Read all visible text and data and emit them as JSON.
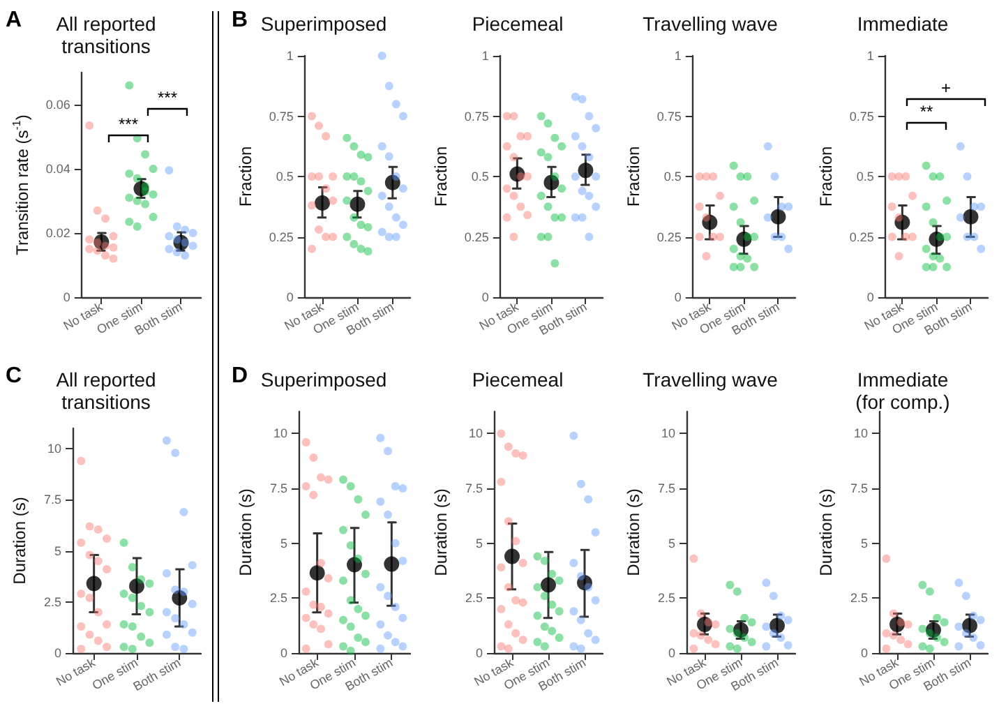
{
  "chart_data": [
    {
      "type": "scatter",
      "title": "All reported\ntransitions",
      "ylabel": "Transition rate (s$^{-1}$)",
      "categories": [
        "No task",
        "One stim",
        "Both stim"
      ],
      "ylim": [
        0,
        0.07
      ],
      "yticks": [
        0,
        0.02,
        0.04,
        0.06
      ],
      "marker": "circle",
      "annotations": [
        "A",
        "***",
        "***"
      ],
      "series": [
        {
          "color": "#f8766d",
          "x": [
            "No task",
            "No task",
            "No task",
            "No task",
            "No task",
            "No task",
            "No task",
            "No task",
            "No task",
            "No task",
            "No task",
            "No task"
          ],
          "values": [
            0.0535,
            0.027,
            0.0245,
            0.019,
            0.018,
            0.017,
            0.016,
            0.0155,
            0.015,
            0.0145,
            0.013,
            0.012
          ]
        },
        {
          "color": "#00ba38",
          "x": [
            "One stim",
            "One stim",
            "One stim",
            "One stim",
            "One stim",
            "One stim",
            "One stim",
            "One stim",
            "One stim",
            "One stim",
            "One stim",
            "One stim",
            "One stim",
            "One stim",
            "One stim"
          ],
          "values": [
            0.066,
            0.0495,
            0.0445,
            0.04,
            0.0385,
            0.037,
            0.0345,
            0.032,
            0.031,
            0.03,
            0.029,
            0.025,
            0.0235,
            0.022,
            0.033
          ]
        },
        {
          "color": "#619cff",
          "x": [
            "Both stim",
            "Both stim",
            "Both stim",
            "Both stim",
            "Both stim",
            "Both stim",
            "Both stim",
            "Both stim",
            "Both stim",
            "Both stim",
            "Both stim"
          ],
          "values": [
            0.0395,
            0.022,
            0.021,
            0.02,
            0.019,
            0.018,
            0.017,
            0.016,
            0.015,
            0.014,
            0.013
          ]
        },
        {
          "color": "#000000",
          "values": [
            0.0172,
            0.0338,
            0.017
          ],
          "errors": [
            [
              0.0145,
              0.02
            ],
            [
              0.031,
              0.0368
            ],
            [
              0.0145,
              0.0202
            ]
          ]
        }
      ]
    },
    {
      "type": "scatter",
      "title": "Superimposed",
      "ylabel": "Fraction",
      "categories": [
        "No task",
        "One stim",
        "Both stim"
      ],
      "ylim": [
        0,
        1
      ],
      "yticks": [
        0,
        0.25,
        0.5,
        0.75,
        1
      ],
      "marker": "circle",
      "annotations": [
        "B"
      ],
      "series": [
        {
          "color": "#f8766d",
          "x": [
            "No task",
            "No task",
            "No task",
            "No task",
            "No task",
            "No task",
            "No task",
            "No task",
            "No task",
            "No task",
            "No task",
            "No task",
            "No task"
          ],
          "values": [
            0.75,
            0.71,
            0.667,
            0.5,
            0.5,
            0.5,
            0.45,
            0.4,
            0.38,
            0.28,
            0.25,
            0.25,
            0.2
          ]
        },
        {
          "color": "#00ba38",
          "x": [
            "One stim",
            "One stim",
            "One stim",
            "One stim",
            "One stim",
            "One stim",
            "One stim",
            "One stim",
            "One stim",
            "One stim",
            "One stim",
            "One stim",
            "One stim",
            "One stim",
            "One stim",
            "One stim"
          ],
          "values": [
            0.66,
            0.625,
            0.59,
            0.58,
            0.5,
            0.5,
            0.48,
            0.44,
            0.4,
            0.33,
            0.3,
            0.29,
            0.25,
            0.22,
            0.2,
            0.19
          ]
        },
        {
          "color": "#619cff",
          "x": [
            "Both stim",
            "Both stim",
            "Both stim",
            "Both stim",
            "Both stim",
            "Both stim",
            "Both stim",
            "Both stim",
            "Both stim",
            "Both stim",
            "Both stim",
            "Both stim",
            "Both stim",
            "Both stim",
            "Both stim"
          ],
          "values": [
            1,
            0.875,
            0.8,
            0.75,
            0.625,
            0.583,
            0.5,
            0.45,
            0.42,
            0.375,
            0.33,
            0.3,
            0.27,
            0.25,
            0.25
          ]
        },
        {
          "color": "#000000",
          "values": [
            0.39,
            0.385,
            0.475
          ],
          "errors": [
            [
              0.33,
              0.455
            ],
            [
              0.33,
              0.44
            ],
            [
              0.41,
              0.54
            ]
          ]
        }
      ]
    },
    {
      "type": "scatter",
      "title": "Piecemeal",
      "ylabel": "Fraction",
      "categories": [
        "No task",
        "One stim",
        "Both stim"
      ],
      "ylim": [
        0,
        1
      ],
      "yticks": [
        0,
        0.25,
        0.5,
        0.75,
        1
      ],
      "marker": "circle",
      "series": [
        {
          "color": "#f8766d",
          "x": [
            "No task",
            "No task",
            "No task",
            "No task",
            "No task",
            "No task",
            "No task",
            "No task",
            "No task",
            "No task",
            "No task",
            "No task",
            "No task",
            "No task"
          ],
          "values": [
            0.75,
            0.75,
            0.667,
            0.667,
            0.625,
            0.58,
            0.5,
            0.5,
            0.45,
            0.42,
            0.375,
            0.34,
            0.33,
            0.25
          ]
        },
        {
          "color": "#00ba38",
          "x": [
            "One stim",
            "One stim",
            "One stim",
            "One stim",
            "One stim",
            "One stim",
            "One stim",
            "One stim",
            "One stim",
            "One stim",
            "One stim",
            "One stim",
            "One stim",
            "One stim",
            "One stim"
          ],
          "values": [
            0.75,
            0.72,
            0.66,
            0.625,
            0.6,
            0.58,
            0.5,
            0.45,
            0.42,
            0.375,
            0.33,
            0.33,
            0.25,
            0.25,
            0.14
          ]
        },
        {
          "color": "#619cff",
          "x": [
            "Both stim",
            "Both stim",
            "Both stim",
            "Both stim",
            "Both stim",
            "Both stim",
            "Both stim",
            "Both stim",
            "Both stim",
            "Both stim",
            "Both stim",
            "Both stim",
            "Both stim",
            "Both stim",
            "Both stim"
          ],
          "values": [
            0.83,
            0.82,
            0.75,
            0.7,
            0.667,
            0.625,
            0.58,
            0.5,
            0.5,
            0.44,
            0.42,
            0.375,
            0.33,
            0.33,
            0.25
          ]
        },
        {
          "color": "#000000",
          "values": [
            0.51,
            0.475,
            0.525
          ],
          "errors": [
            [
              0.45,
              0.575
            ],
            [
              0.415,
              0.54
            ],
            [
              0.465,
              0.59
            ]
          ]
        }
      ]
    },
    {
      "type": "scatter",
      "title": "Travelling wave",
      "ylabel": "Fraction",
      "categories": [
        "No task",
        "One stim",
        "Both stim"
      ],
      "ylim": [
        0,
        1
      ],
      "yticks": [
        0,
        0.25,
        0.5,
        0.75,
        1
      ],
      "marker": "circle",
      "series": [
        {
          "color": "#f8766d",
          "x": [
            "No task",
            "No task",
            "No task",
            "No task",
            "No task",
            "No task",
            "No task",
            "No task",
            "No task",
            "No task"
          ],
          "values": [
            0.5,
            0.5,
            0.5,
            0.42,
            0.375,
            0.33,
            0.25,
            0.25,
            0.25,
            0.17
          ]
        },
        {
          "color": "#00ba38",
          "x": [
            "One stim",
            "One stim",
            "One stim",
            "One stim",
            "One stim",
            "One stim",
            "One stim",
            "One stim",
            "One stim",
            "One stim",
            "One stim",
            "One stim",
            "One stim",
            "One stim"
          ],
          "values": [
            0.545,
            0.5,
            0.5,
            0.4,
            0.375,
            0.31,
            0.25,
            0.25,
            0.2,
            0.17,
            0.16,
            0.125,
            0.125,
            0.125
          ]
        },
        {
          "color": "#619cff",
          "x": [
            "Both stim",
            "Both stim",
            "Both stim",
            "Both stim",
            "Both stim",
            "Both stim",
            "Both stim",
            "Both stim"
          ],
          "values": [
            0.625,
            0.5,
            0.375,
            0.375,
            0.33,
            0.25,
            0.25,
            0.2
          ]
        },
        {
          "color": "#000000",
          "values": [
            0.31,
            0.24,
            0.333
          ],
          "errors": [
            [
              0.24,
              0.38
            ],
            [
              0.18,
              0.295
            ],
            [
              0.25,
              0.415
            ]
          ]
        }
      ]
    },
    {
      "type": "scatter",
      "title": "Immediate",
      "ylabel": "Fraction",
      "categories": [
        "No task",
        "One stim",
        "Both stim"
      ],
      "ylim": [
        0,
        1
      ],
      "yticks": [
        0,
        0.25,
        0.5,
        0.75,
        1
      ],
      "marker": "circle",
      "annotations": [
        "**",
        "+"
      ],
      "series": [
        {
          "color": "#f8766d",
          "x": [
            "No task",
            "No task",
            "No task",
            "No task",
            "No task",
            "No task",
            "No task",
            "No task",
            "No task",
            "No task"
          ],
          "values": [
            0.5,
            0.5,
            0.5,
            0.42,
            0.375,
            0.33,
            0.25,
            0.25,
            0.25,
            0.17
          ]
        },
        {
          "color": "#00ba38",
          "x": [
            "One stim",
            "One stim",
            "One stim",
            "One stim",
            "One stim",
            "One stim",
            "One stim",
            "One stim",
            "One stim",
            "One stim",
            "One stim",
            "One stim",
            "One stim",
            "One stim"
          ],
          "values": [
            0.545,
            0.5,
            0.5,
            0.4,
            0.375,
            0.31,
            0.25,
            0.25,
            0.2,
            0.17,
            0.16,
            0.125,
            0.125,
            0.125
          ]
        },
        {
          "color": "#619cff",
          "x": [
            "Both stim",
            "Both stim",
            "Both stim",
            "Both stim",
            "Both stim",
            "Both stim",
            "Both stim",
            "Both stim"
          ],
          "values": [
            0.625,
            0.5,
            0.375,
            0.375,
            0.33,
            0.25,
            0.25,
            0.2
          ]
        },
        {
          "color": "#000000",
          "values": [
            0.31,
            0.24,
            0.333
          ],
          "errors": [
            [
              0.24,
              0.38
            ],
            [
              0.18,
              0.295
            ],
            [
              0.25,
              0.415
            ]
          ]
        }
      ]
    },
    {
      "type": "scatter",
      "title": "All reported\ntransitions",
      "ylabel": "Duration (s)",
      "categories": [
        "No task",
        "One stim",
        "Both stim"
      ],
      "ylim": [
        0,
        11
      ],
      "yticks": [
        0,
        2.5,
        5,
        7.5,
        10
      ],
      "marker": "circle",
      "annotations": [
        "C"
      ],
      "series": [
        {
          "color": "#f8766d",
          "x": [
            "No task",
            "No task",
            "No task",
            "No task",
            "No task",
            "No task",
            "No task",
            "No task",
            "No task",
            "No task",
            "No task",
            "No task",
            "No task",
            "No task",
            "No task",
            "No task",
            "No task"
          ],
          "values": [
            9.4,
            6.2,
            6.05,
            5.6,
            5.4,
            4.8,
            4.5,
            4.1,
            2.9,
            2.7,
            2.0,
            1.4,
            1.3,
            0.9,
            0.6,
            0.3,
            0.2
          ]
        },
        {
          "color": "#00ba38",
          "x": [
            "One stim",
            "One stim",
            "One stim",
            "One stim",
            "One stim",
            "One stim",
            "One stim",
            "One stim",
            "One stim",
            "One stim",
            "One stim",
            "One stim",
            "One stim",
            "One stim"
          ],
          "values": [
            5.4,
            4.2,
            3.6,
            3.4,
            2.9,
            2.7,
            2.3,
            2.0,
            1.4,
            1.3,
            0.8,
            0.5,
            0.3,
            0.2
          ]
        },
        {
          "color": "#619cff",
          "x": [
            "Both stim",
            "Both stim",
            "Both stim",
            "Both stim",
            "Both stim",
            "Both stim",
            "Both stim",
            "Both stim",
            "Both stim",
            "Both stim",
            "Both stim",
            "Both stim",
            "Both stim",
            "Both stim",
            "Both stim"
          ],
          "values": [
            10.4,
            9.8,
            6.9,
            4.3,
            3.9,
            3.1,
            3.0,
            2.4,
            2.0,
            1.7,
            1.4,
            1.0,
            0.9,
            0.3,
            0.2
          ]
        },
        {
          "color": "#000000",
          "values": [
            3.4,
            3.27,
            2.7
          ],
          "errors": [
            [
              2.0,
              4.8
            ],
            [
              1.9,
              4.65
            ],
            [
              1.3,
              4.1
            ]
          ]
        }
      ]
    },
    {
      "type": "scatter",
      "title": "Superimposed",
      "ylabel": "Duration (s)",
      "categories": [
        "No task",
        "One stim",
        "Both stim"
      ],
      "ylim": [
        0,
        11
      ],
      "yticks": [
        0,
        2.5,
        5,
        7.5,
        10
      ],
      "marker": "circle",
      "annotations": [
        "D"
      ],
      "series": [
        {
          "color": "#f8766d",
          "x": [
            "No task",
            "No task",
            "No task",
            "No task",
            "No task",
            "No task",
            "No task",
            "No task",
            "No task",
            "No task",
            "No task",
            "No task",
            "No task",
            "No task",
            "No task",
            "No task",
            "No task"
          ],
          "values": [
            9.6,
            8.9,
            8.0,
            7.9,
            7.6,
            7.2,
            4.1,
            3.4,
            2.8,
            2.2,
            2.1,
            1.8,
            1.6,
            1.3,
            1.1,
            0.4,
            0.2
          ]
        },
        {
          "color": "#00ba38",
          "x": [
            "One stim",
            "One stim",
            "One stim",
            "One stim",
            "One stim",
            "One stim",
            "One stim",
            "One stim",
            "One stim",
            "One stim",
            "One stim",
            "One stim",
            "One stim",
            "One stim",
            "One stim",
            "One stim",
            "One stim",
            "One stim"
          ],
          "values": [
            7.9,
            7.6,
            7.0,
            6.3,
            5.6,
            4.9,
            4.3,
            3.6,
            3.3,
            2.4,
            2.0,
            1.7,
            1.5,
            1.2,
            0.7,
            0.5,
            0.3,
            0.1
          ]
        },
        {
          "color": "#619cff",
          "x": [
            "Both stim",
            "Both stim",
            "Both stim",
            "Both stim",
            "Both stim",
            "Both stim",
            "Both stim",
            "Both stim",
            "Both stim",
            "Both stim",
            "Both stim",
            "Both stim",
            "Both stim",
            "Both stim",
            "Both stim",
            "Both stim",
            "Both stim"
          ],
          "values": [
            9.8,
            9.2,
            7.6,
            7.5,
            6.9,
            6.3,
            5.0,
            4.2,
            3.0,
            2.6,
            2.1,
            1.6,
            1.3,
            0.8,
            0.5,
            0.3,
            0.2
          ]
        },
        {
          "color": "#000000",
          "values": [
            3.65,
            4.02,
            4.05
          ],
          "errors": [
            [
              1.85,
              5.45
            ],
            [
              2.3,
              5.7
            ],
            [
              2.15,
              5.95
            ]
          ]
        }
      ]
    },
    {
      "type": "scatter",
      "title": "Piecemeal",
      "ylabel": "Duration (s)",
      "categories": [
        "No task",
        "One stim",
        "Both stim"
      ],
      "ylim": [
        0,
        11
      ],
      "yticks": [
        0,
        2.5,
        5,
        7.5,
        10
      ],
      "marker": "circle",
      "series": [
        {
          "color": "#f8766d",
          "x": [
            "No task",
            "No task",
            "No task",
            "No task",
            "No task",
            "No task",
            "No task",
            "No task",
            "No task",
            "No task",
            "No task",
            "No task",
            "No task",
            "No task",
            "No task",
            "No task",
            "No task",
            "No task"
          ],
          "values": [
            10.0,
            9.4,
            9.1,
            9.0,
            7.8,
            6.0,
            5.1,
            4.1,
            3.9,
            3.0,
            2.4,
            2.3,
            2.0,
            1.3,
            0.9,
            0.6,
            0.3,
            0.2
          ]
        },
        {
          "color": "#00ba38",
          "x": [
            "One stim",
            "One stim",
            "One stim",
            "One stim",
            "One stim",
            "One stim",
            "One stim",
            "One stim",
            "One stim",
            "One stim",
            "One stim",
            "One stim",
            "One stim",
            "One stim"
          ],
          "values": [
            4.4,
            4.2,
            3.6,
            3.3,
            3.0,
            2.6,
            2.2,
            1.9,
            1.7,
            1.2,
            1.0,
            0.7,
            0.5,
            0.3
          ]
        },
        {
          "color": "#619cff",
          "x": [
            "Both stim",
            "Both stim",
            "Both stim",
            "Both stim",
            "Both stim",
            "Both stim",
            "Both stim",
            "Both stim",
            "Both stim",
            "Both stim",
            "Both stim",
            "Both stim",
            "Both stim",
            "Both stim"
          ],
          "values": [
            9.9,
            7.7,
            7.0,
            5.5,
            4.1,
            3.5,
            3.0,
            2.4,
            1.9,
            1.5,
            0.9,
            0.6,
            0.3,
            0.2
          ]
        },
        {
          "color": "#000000",
          "values": [
            4.4,
            3.1,
            3.2
          ],
          "errors": [
            [
              2.9,
              5.9
            ],
            [
              1.6,
              4.6
            ],
            [
              1.65,
              4.7
            ]
          ]
        }
      ]
    },
    {
      "type": "scatter",
      "title": "Travelling wave",
      "ylabel": "Duration (s)",
      "categories": [
        "No task",
        "One stim",
        "Both stim"
      ],
      "ylim": [
        0,
        11
      ],
      "yticks": [
        0,
        2.5,
        5,
        7.5,
        10
      ],
      "marker": "circle",
      "series": [
        {
          "color": "#f8766d",
          "x": [
            "No task",
            "No task",
            "No task",
            "No task",
            "No task",
            "No task",
            "No task",
            "No task",
            "No task"
          ],
          "values": [
            4.3,
            1.8,
            1.4,
            1.3,
            0.9,
            0.8,
            0.6,
            0.4,
            0.2
          ]
        },
        {
          "color": "#00ba38",
          "x": [
            "One stim",
            "One stim",
            "One stim",
            "One stim",
            "One stim",
            "One stim",
            "One stim",
            "One stim",
            "One stim",
            "One stim"
          ],
          "values": [
            3.1,
            2.8,
            1.6,
            1.4,
            1.1,
            0.9,
            0.7,
            0.5,
            0.3,
            0.2
          ]
        },
        {
          "color": "#619cff",
          "x": [
            "Both stim",
            "Both stim",
            "Both stim",
            "Both stim",
            "Both stim",
            "Both stim",
            "Both stim",
            "Both stim",
            "Both stim"
          ],
          "values": [
            3.2,
            2.6,
            1.7,
            1.5,
            1.2,
            0.9,
            0.7,
            0.35,
            0.3
          ]
        },
        {
          "color": "#000000",
          "values": [
            1.3,
            1.05,
            1.25
          ],
          "errors": [
            [
              0.85,
              1.8
            ],
            [
              0.65,
              1.45
            ],
            [
              0.75,
              1.75
            ]
          ]
        }
      ]
    },
    {
      "type": "scatter",
      "title": "Immediate\n(for comp.)",
      "ylabel": "Duration (s)",
      "categories": [
        "No task",
        "One stim",
        "Both stim"
      ],
      "ylim": [
        0,
        11
      ],
      "yticks": [
        0,
        2.5,
        5,
        7.5,
        10
      ],
      "marker": "circle",
      "series": [
        {
          "color": "#f8766d",
          "x": [
            "No task",
            "No task",
            "No task",
            "No task",
            "No task",
            "No task",
            "No task",
            "No task",
            "No task"
          ],
          "values": [
            4.3,
            1.8,
            1.4,
            1.3,
            0.9,
            0.8,
            0.6,
            0.4,
            0.2
          ]
        },
        {
          "color": "#00ba38",
          "x": [
            "One stim",
            "One stim",
            "One stim",
            "One stim",
            "One stim",
            "One stim",
            "One stim",
            "One stim",
            "One stim",
            "One stim"
          ],
          "values": [
            3.1,
            2.8,
            1.6,
            1.4,
            1.1,
            0.9,
            0.7,
            0.5,
            0.3,
            0.2
          ]
        },
        {
          "color": "#619cff",
          "x": [
            "Both stim",
            "Both stim",
            "Both stim",
            "Both stim",
            "Both stim",
            "Both stim",
            "Both stim",
            "Both stim",
            "Both stim"
          ],
          "values": [
            3.2,
            2.6,
            1.7,
            1.5,
            1.2,
            0.9,
            0.7,
            0.35,
            0.3
          ]
        },
        {
          "color": "#000000",
          "values": [
            1.3,
            1.05,
            1.25
          ],
          "errors": [
            [
              0.85,
              1.8
            ],
            [
              0.65,
              1.45
            ],
            [
              0.75,
              1.75
            ]
          ]
        }
      ]
    }
  ]
}
